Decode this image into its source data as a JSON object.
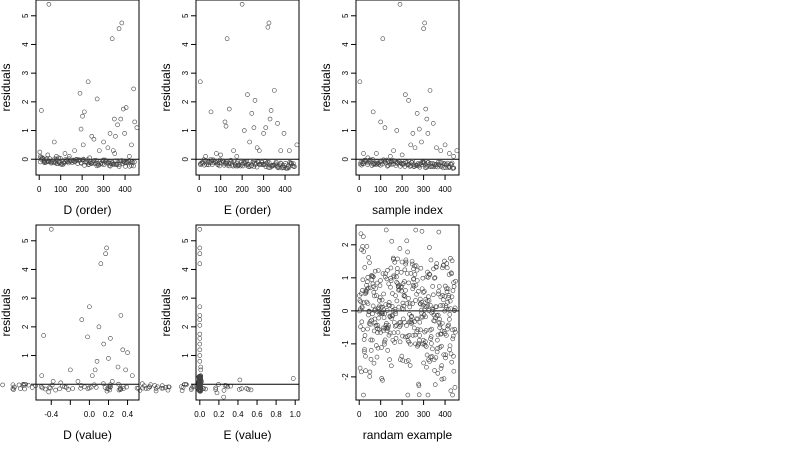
{
  "chart_data": [
    {
      "type": "scatter",
      "xlabel": "D (order)",
      "ylabel": "residuals",
      "xlim": [
        -15,
        465
      ],
      "ylim": [
        -0.55,
        5.55
      ],
      "xticks": [
        0,
        100,
        200,
        300,
        400
      ],
      "xticklabels": [
        "0",
        "100",
        "200",
        "300",
        "400"
      ],
      "yticks": [
        0,
        1,
        2,
        3,
        4,
        5
      ],
      "yticklabels": [
        "0",
        "1",
        "2",
        "3",
        "4",
        "5"
      ],
      "hline": 0,
      "grid": false,
      "series": [
        {
          "x": [
            3,
            5,
            10,
            15,
            25,
            33,
            40,
            45,
            70,
            80,
            90,
            120,
            140,
            165,
            190,
            195,
            202,
            205,
            210,
            228,
            235,
            245,
            255,
            270,
            280,
            300,
            320,
            330,
            340,
            345,
            350,
            352,
            355,
            365,
            372,
            380,
            385,
            392,
            398,
            405,
            420,
            430,
            440,
            445,
            455
          ],
          "y": [
            0.25,
            0.1,
            1.7,
            0.05,
            -0.05,
            -0.1,
            0.15,
            5.4,
            0.6,
            0.1,
            0.05,
            0.2,
            0.1,
            0.3,
            2.3,
            1.05,
            1.5,
            0.5,
            1.65,
            2.7,
            0.05,
            0.8,
            0.7,
            2.1,
            0.3,
            0.6,
            0.4,
            0.9,
            4.2,
            0.3,
            1.4,
            0.2,
            0.8,
            1.2,
            4.55,
            1.4,
            4.75,
            1.75,
            0.9,
            1.8,
            0.1,
            0.5,
            2.45,
            1.3,
            1.1
          ]
        }
      ],
      "dense_band": {
        "y": -0.05,
        "note": "most points lie in a dense band just below 0 across the full x range"
      }
    },
    {
      "type": "scatter",
      "xlabel": "E (order)",
      "ylabel": "residuals",
      "xlim": [
        -15,
        465
      ],
      "ylim": [
        -0.55,
        5.55
      ],
      "xticks": [
        0,
        100,
        200,
        300,
        400
      ],
      "xticklabels": [
        "0",
        "100",
        "200",
        "300",
        "400"
      ],
      "yticks": [
        0,
        1,
        2,
        3,
        4,
        5
      ],
      "yticklabels": [
        "0",
        "1",
        "2",
        "3",
        "4",
        "5"
      ],
      "hline": 0,
      "grid": false,
      "series": [
        {
          "x": [
            5,
            30,
            55,
            80,
            100,
            120,
            125,
            130,
            140,
            160,
            175,
            200,
            210,
            225,
            235,
            245,
            255,
            260,
            270,
            280,
            300,
            310,
            320,
            325,
            330,
            335,
            350,
            365,
            380,
            395,
            420,
            440,
            455
          ],
          "y": [
            2.7,
            0.1,
            1.65,
            0.2,
            0.15,
            1.3,
            1.15,
            4.2,
            1.75,
            0.3,
            0.1,
            5.4,
            1.0,
            2.25,
            0.6,
            1.6,
            1.1,
            2.05,
            0.4,
            0.3,
            0.9,
            1.1,
            4.6,
            4.75,
            1.4,
            1.7,
            2.4,
            1.25,
            0.3,
            0.9,
            0.3,
            -0.25,
            0.5
          ]
        }
      ],
      "dense_band": {
        "y": -0.1,
        "note": "dense band near 0"
      }
    },
    {
      "type": "scatter",
      "xlabel": "sample index",
      "ylabel": "residuals",
      "xlim": [
        -15,
        465
      ],
      "ylim": [
        -0.55,
        5.55
      ],
      "xticks": [
        0,
        100,
        200,
        300,
        400
      ],
      "xticklabels": [
        "0",
        "100",
        "200",
        "300",
        "400"
      ],
      "yticks": [
        0,
        1,
        2,
        3,
        4,
        5
      ],
      "yticklabels": [
        "0",
        "1",
        "2",
        "3",
        "4",
        "5"
      ],
      "hline": 0,
      "grid": false,
      "series": [
        {
          "x": [
            3,
            20,
            40,
            65,
            80,
            100,
            110,
            120,
            145,
            160,
            175,
            190,
            200,
            215,
            230,
            240,
            250,
            260,
            270,
            280,
            290,
            300,
            305,
            310,
            315,
            320,
            330,
            345,
            360,
            380,
            400,
            420,
            440,
            455
          ],
          "y": [
            2.7,
            0.2,
            0.05,
            1.65,
            0.2,
            1.3,
            4.2,
            1.1,
            0.1,
            0.3,
            1.0,
            5.4,
            0.15,
            2.25,
            2.05,
            0.5,
            0.9,
            0.4,
            1.6,
            1.05,
            0.6,
            4.55,
            4.75,
            1.75,
            1.4,
            0.9,
            2.4,
            1.25,
            0.4,
            0.3,
            0.5,
            0.2,
            0.1,
            0.3
          ]
        }
      ],
      "dense_band": {
        "y": -0.1,
        "note": "dense band near 0"
      }
    },
    {
      "type": "scatter",
      "xlabel": "D (value)",
      "ylabel": "residuals",
      "xlim": [
        -0.56,
        0.52
      ],
      "ylim": [
        -0.55,
        5.55
      ],
      "xticks": [
        -0.4,
        -0.2,
        0.0,
        0.2,
        0.4
      ],
      "xticklabels": [
        "-0.4",
        "",
        "0.0",
        "0.2",
        "0.4"
      ],
      "yticks": [
        0,
        1,
        2,
        3,
        4,
        5
      ],
      "yticklabels": [
        "0",
        "1",
        "2",
        "3",
        "4",
        "5"
      ],
      "hline": 0,
      "grid": false,
      "series": [
        {
          "x": [
            -0.5,
            -0.48,
            -0.4,
            -0.38,
            -0.3,
            -0.2,
            -0.12,
            -0.08,
            -0.02,
            0.0,
            0.03,
            0.06,
            0.08,
            0.1,
            0.12,
            0.15,
            0.17,
            0.18,
            0.2,
            0.22,
            0.24,
            0.3,
            0.33,
            0.35,
            0.38,
            0.4,
            0.45
          ],
          "y": [
            0.3,
            1.7,
            5.4,
            0.1,
            0.05,
            0.5,
            0.1,
            2.25,
            1.65,
            2.7,
            0.3,
            0.5,
            0.8,
            2.0,
            4.2,
            1.4,
            4.55,
            4.75,
            0.9,
            1.6,
            0.1,
            0.6,
            2.4,
            1.2,
            0.5,
            1.1,
            0.3
          ]
        }
      ],
      "dense_band": {
        "y": -0.05,
        "note": "dense band near 0 spanning x from -0.5 to 0.45"
      }
    },
    {
      "type": "scatter",
      "xlabel": "E (value)",
      "ylabel": "residuals",
      "xlim": [
        -0.04,
        1.04
      ],
      "ylim": [
        -0.55,
        5.55
      ],
      "xticks": [
        0.0,
        0.2,
        0.4,
        0.6,
        0.8,
        1.0
      ],
      "xticklabels": [
        "0.0",
        "0.2",
        "0.4",
        "0.6",
        "0.8",
        "1.0"
      ],
      "yticks": [
        0,
        1,
        2,
        3,
        4,
        5
      ],
      "yticklabels": [
        "0",
        "1",
        "2",
        "3",
        "4",
        "5"
      ],
      "hline": 0,
      "grid": false,
      "series": [
        {
          "x": [
            0.0,
            0.0,
            0.0,
            0.0,
            0.0,
            0.0,
            0.0,
            0.0,
            0.0,
            0.0,
            0.0,
            0.0,
            0.0,
            0.0,
            0.01,
            0.01,
            0.01,
            0.0,
            0.0,
            0.0,
            0.01,
            0.0,
            0.02,
            0.18,
            0.25,
            0.42,
            0.98
          ],
          "y": [
            5.4,
            4.75,
            4.55,
            4.2,
            2.7,
            2.4,
            2.25,
            2.05,
            1.75,
            1.6,
            1.4,
            1.2,
            1.0,
            0.8,
            0.6,
            0.5,
            0.3,
            0.15,
            0.0,
            -0.1,
            -0.15,
            -0.2,
            0.1,
            -0.3,
            -0.45,
            0.15,
            0.2
          ]
        }
      ],
      "dense_band": {
        "x": 0.0,
        "note": "nearly all points sit at x near 0"
      }
    },
    {
      "type": "scatter",
      "xlabel": "randam example",
      "ylabel": "residuals",
      "xlim": [
        -15,
        465
      ],
      "ylim": [
        -2.7,
        2.6
      ],
      "xticks": [
        0,
        100,
        200,
        300,
        400
      ],
      "xticklabels": [
        "0",
        "100",
        "200",
        "300",
        "400"
      ],
      "yticks": [
        -2,
        -1,
        0,
        1,
        2
      ],
      "yticklabels": [
        "-2",
        "-1",
        "0",
        "1",
        "2"
      ],
      "hline": 0,
      "grid": false,
      "random_cloud": {
        "n": 450,
        "mean": 0,
        "sd": 1,
        "x_from": 1,
        "x_to": 450,
        "note": "points scattered roughly uniformly between -2.5 and 2.5"
      }
    }
  ]
}
